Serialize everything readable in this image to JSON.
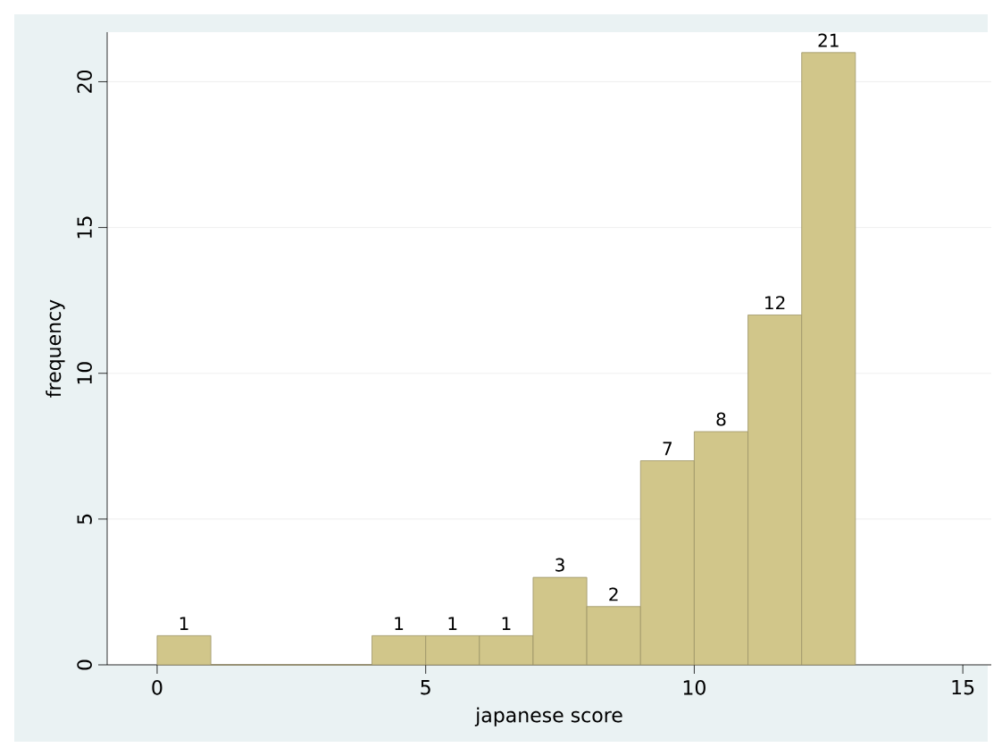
{
  "chart_data": {
    "type": "histogram",
    "xlabel": "japanese score",
    "ylabel": "frequency",
    "bins": [
      0,
      1,
      2,
      3,
      4,
      5,
      6,
      7,
      8,
      9,
      10,
      11,
      12,
      13
    ],
    "values": [
      1,
      0,
      0,
      0,
      1,
      1,
      1,
      3,
      2,
      7,
      8,
      12,
      21
    ],
    "value_labels": [
      "1",
      null,
      null,
      null,
      "1",
      "1",
      "1",
      "3",
      "2",
      "7",
      "8",
      "12",
      "21"
    ],
    "color": "#d1c68a",
    "xlim": [
      -0.93,
      15.53
    ],
    "ylim": [
      0,
      21.7
    ],
    "xticks": [
      0,
      5,
      10,
      15
    ],
    "yticks": [
      0,
      5,
      10,
      15,
      20
    ],
    "grid": "y"
  }
}
